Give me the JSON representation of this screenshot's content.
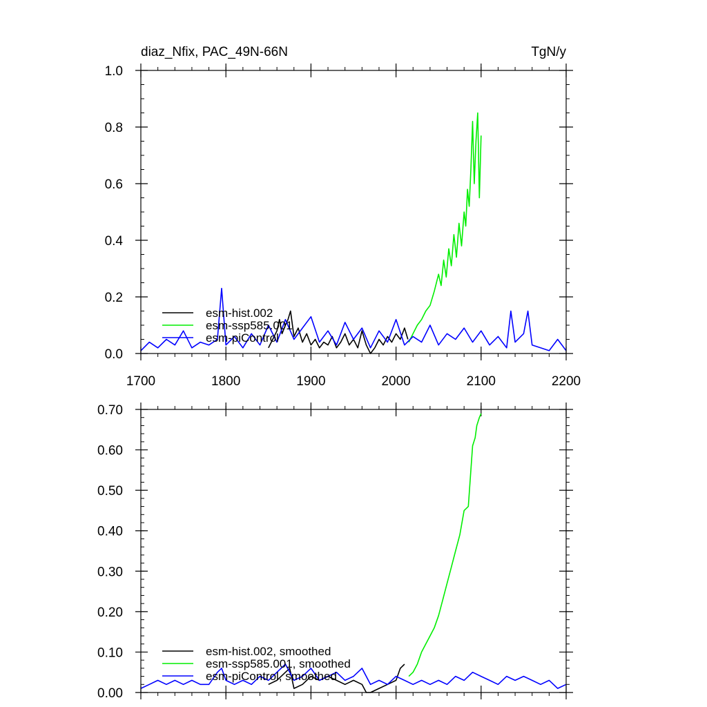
{
  "chart_data": [
    {
      "type": "line",
      "title": "diaz_Nfix, PAC_49N-66N",
      "units": "TgN/y",
      "xlim": [
        1700,
        2200
      ],
      "ylim": [
        0,
        1.0
      ],
      "x_ticks": [
        1700,
        1800,
        1900,
        2000,
        2100,
        2200
      ],
      "x_tick_labels": [
        "1700",
        "1800",
        "1900",
        "2000",
        "2100",
        "2200"
      ],
      "y_ticks": [
        0,
        0.2,
        0.4,
        0.6,
        0.8,
        1.0
      ],
      "y_tick_labels": [
        "0.0",
        "0.2",
        "0.4",
        "0.6",
        "0.8",
        "1.0"
      ],
      "legend_placement": "bottom-left",
      "series": [
        {
          "name": "esm-hist.002",
          "color": "#000000",
          "x": [
            1850,
            1855,
            1860,
            1863,
            1866,
            1870,
            1873,
            1876,
            1880,
            1885,
            1890,
            1895,
            1900,
            1905,
            1910,
            1915,
            1920,
            1925,
            1930,
            1935,
            1940,
            1945,
            1950,
            1955,
            1960,
            1965,
            1970,
            1975,
            1980,
            1985,
            1990,
            1995,
            2000,
            2005,
            2010,
            2014
          ],
          "y": [
            0.02,
            0.05,
            0.08,
            0.12,
            0.07,
            0.1,
            0.12,
            0.15,
            0.06,
            0.09,
            0.04,
            0.07,
            0.03,
            0.05,
            0.02,
            0.04,
            0.03,
            0.06,
            0.02,
            0.04,
            0.07,
            0.03,
            0.05,
            0.02,
            0.08,
            0.03,
            0.0,
            0.02,
            0.05,
            0.03,
            0.06,
            0.04,
            0.07,
            0.05,
            0.09,
            0.05
          ]
        },
        {
          "name": "esm-ssp585.001",
          "color": "#00ee00",
          "x": [
            2015,
            2020,
            2025,
            2030,
            2035,
            2040,
            2045,
            2050,
            2053,
            2056,
            2059,
            2062,
            2065,
            2068,
            2071,
            2074,
            2077,
            2080,
            2082,
            2084,
            2086,
            2088,
            2090,
            2092,
            2094,
            2096,
            2098,
            2100
          ],
          "y": [
            0.04,
            0.07,
            0.1,
            0.12,
            0.15,
            0.17,
            0.22,
            0.28,
            0.24,
            0.33,
            0.27,
            0.37,
            0.31,
            0.42,
            0.34,
            0.46,
            0.38,
            0.5,
            0.45,
            0.58,
            0.52,
            0.65,
            0.82,
            0.6,
            0.75,
            0.85,
            0.55,
            0.77
          ]
        },
        {
          "name": "esm-piControl",
          "color": "#0000ff",
          "x": [
            1700,
            1710,
            1720,
            1730,
            1740,
            1750,
            1760,
            1770,
            1780,
            1790,
            1795,
            1800,
            1810,
            1820,
            1830,
            1840,
            1850,
            1860,
            1870,
            1880,
            1890,
            1900,
            1910,
            1920,
            1930,
            1940,
            1950,
            1960,
            1970,
            1980,
            1990,
            2000,
            2010,
            2020,
            2030,
            2040,
            2050,
            2060,
            2070,
            2080,
            2090,
            2100,
            2110,
            2120,
            2130,
            2135,
            2140,
            2150,
            2155,
            2160,
            2170,
            2180,
            2190,
            2200
          ],
          "y": [
            0.01,
            0.04,
            0.02,
            0.05,
            0.03,
            0.08,
            0.02,
            0.04,
            0.03,
            0.05,
            0.23,
            0.03,
            0.06,
            0.02,
            0.07,
            0.03,
            0.1,
            0.04,
            0.12,
            0.05,
            0.09,
            0.13,
            0.04,
            0.08,
            0.03,
            0.11,
            0.05,
            0.09,
            0.02,
            0.08,
            0.04,
            0.12,
            0.03,
            0.06,
            0.04,
            0.1,
            0.03,
            0.07,
            0.05,
            0.09,
            0.04,
            0.08,
            0.03,
            0.06,
            0.02,
            0.15,
            0.04,
            0.07,
            0.15,
            0.03,
            0.02,
            0.01,
            0.05,
            0.01
          ]
        }
      ]
    },
    {
      "type": "line",
      "xlim": [
        1700,
        2200
      ],
      "ylim": [
        0,
        0.7
      ],
      "x_ticks": [
        1700,
        1800,
        1900,
        2000,
        2100,
        2200
      ],
      "y_ticks": [
        0,
        0.1,
        0.2,
        0.3,
        0.4,
        0.5,
        0.6,
        0.7
      ],
      "y_tick_labels": [
        "0.00",
        "0.10",
        "0.20",
        "0.30",
        "0.40",
        "0.50",
        "0.60",
        "0.70"
      ],
      "legend_placement": "bottom-left",
      "series": [
        {
          "name": "esm-hist.002, smoothed",
          "color": "#000000",
          "x": [
            1850,
            1860,
            1870,
            1875,
            1880,
            1890,
            1900,
            1910,
            1920,
            1930,
            1940,
            1950,
            1960,
            1965,
            1970,
            1980,
            1990,
            2000,
            2005,
            2010
          ],
          "y": [
            0.02,
            0.03,
            0.05,
            0.06,
            0.01,
            0.02,
            0.04,
            0.03,
            0.04,
            0.03,
            0.02,
            0.03,
            0.02,
            0.0,
            0.0,
            0.01,
            0.02,
            0.03,
            0.06,
            0.07
          ]
        },
        {
          "name": "esm-ssp585.001, smoothed",
          "color": "#00ee00",
          "x": [
            2015,
            2020,
            2025,
            2030,
            2035,
            2040,
            2045,
            2050,
            2055,
            2060,
            2065,
            2070,
            2075,
            2080,
            2085,
            2088,
            2090,
            2093,
            2095,
            2098,
            2100
          ],
          "y": [
            0.04,
            0.05,
            0.07,
            0.1,
            0.12,
            0.14,
            0.16,
            0.19,
            0.23,
            0.27,
            0.31,
            0.35,
            0.39,
            0.45,
            0.46,
            0.55,
            0.61,
            0.63,
            0.66,
            0.68,
            0.69
          ]
        },
        {
          "name": "esm-piControl, smoothed",
          "color": "#0000ff",
          "x": [
            1700,
            1710,
            1720,
            1730,
            1740,
            1750,
            1760,
            1770,
            1780,
            1790,
            1795,
            1800,
            1810,
            1820,
            1830,
            1840,
            1850,
            1860,
            1870,
            1880,
            1890,
            1900,
            1910,
            1920,
            1930,
            1940,
            1950,
            1960,
            1970,
            1980,
            1990,
            2000,
            2010,
            2020,
            2030,
            2040,
            2050,
            2060,
            2070,
            2080,
            2090,
            2100,
            2110,
            2120,
            2130,
            2140,
            2150,
            2160,
            2170,
            2180,
            2190,
            2200
          ],
          "y": [
            0.01,
            0.02,
            0.03,
            0.02,
            0.03,
            0.02,
            0.03,
            0.02,
            0.02,
            0.05,
            0.06,
            0.03,
            0.02,
            0.03,
            0.02,
            0.04,
            0.03,
            0.05,
            0.07,
            0.03,
            0.04,
            0.06,
            0.03,
            0.04,
            0.05,
            0.03,
            0.04,
            0.06,
            0.02,
            0.03,
            0.02,
            0.04,
            0.03,
            0.02,
            0.03,
            0.02,
            0.03,
            0.02,
            0.04,
            0.03,
            0.05,
            0.04,
            0.03,
            0.02,
            0.04,
            0.03,
            0.04,
            0.03,
            0.02,
            0.03,
            0.01,
            0.02
          ]
        }
      ]
    }
  ]
}
